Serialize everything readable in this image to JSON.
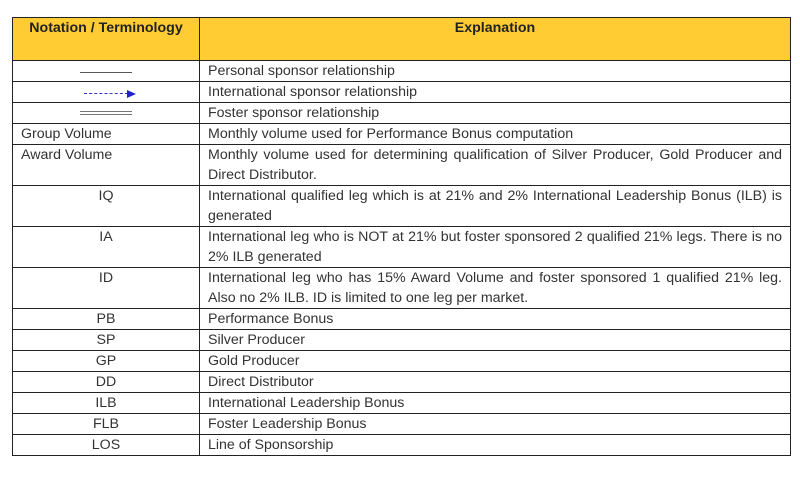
{
  "headers": {
    "notation": "Notation / Terminology",
    "explanation": "Explanation"
  },
  "rows": [
    {
      "notation": "",
      "symbol": "solid-line",
      "explanation": "Personal sponsor relationship"
    },
    {
      "notation": "",
      "symbol": "dashed-arrow",
      "explanation": "International sponsor relationship"
    },
    {
      "notation": "",
      "symbol": "double-line",
      "explanation": "Foster sponsor relationship"
    },
    {
      "notation": "Group Volume",
      "explanation": "Monthly volume used for Performance Bonus computation"
    },
    {
      "notation": "Award Volume",
      "explanation": "Monthly volume used for determining qualification of Silver Producer, Gold Producer and Direct Distributor."
    },
    {
      "notation": "IQ",
      "explanation": "International qualified leg which is at 21% and 2% International Leadership Bonus (ILB) is generated"
    },
    {
      "notation": "IA",
      "explanation": "International leg who is NOT at 21% but foster sponsored 2 qualified 21% legs. There is no 2% ILB generated"
    },
    {
      "notation": "ID",
      "explanation": "International leg who has 15% Award Volume and foster sponsored 1 qualified 21% leg. Also no 2% ILB. ID is limited to one leg per market."
    },
    {
      "notation": "PB",
      "explanation": "Performance Bonus"
    },
    {
      "notation": "SP",
      "explanation": "Silver Producer"
    },
    {
      "notation": "GP",
      "explanation": "Gold Producer"
    },
    {
      "notation": "DD",
      "explanation": "Direct Distributor"
    },
    {
      "notation": "ILB",
      "explanation": "International Leadership Bonus"
    },
    {
      "notation": "FLB",
      "explanation": "Foster Leadership Bonus"
    },
    {
      "notation": "LOS",
      "explanation": "Line of Sponsorship"
    }
  ],
  "colors": {
    "header_bg": "#FFCC33",
    "arrow": "#2222CC"
  }
}
